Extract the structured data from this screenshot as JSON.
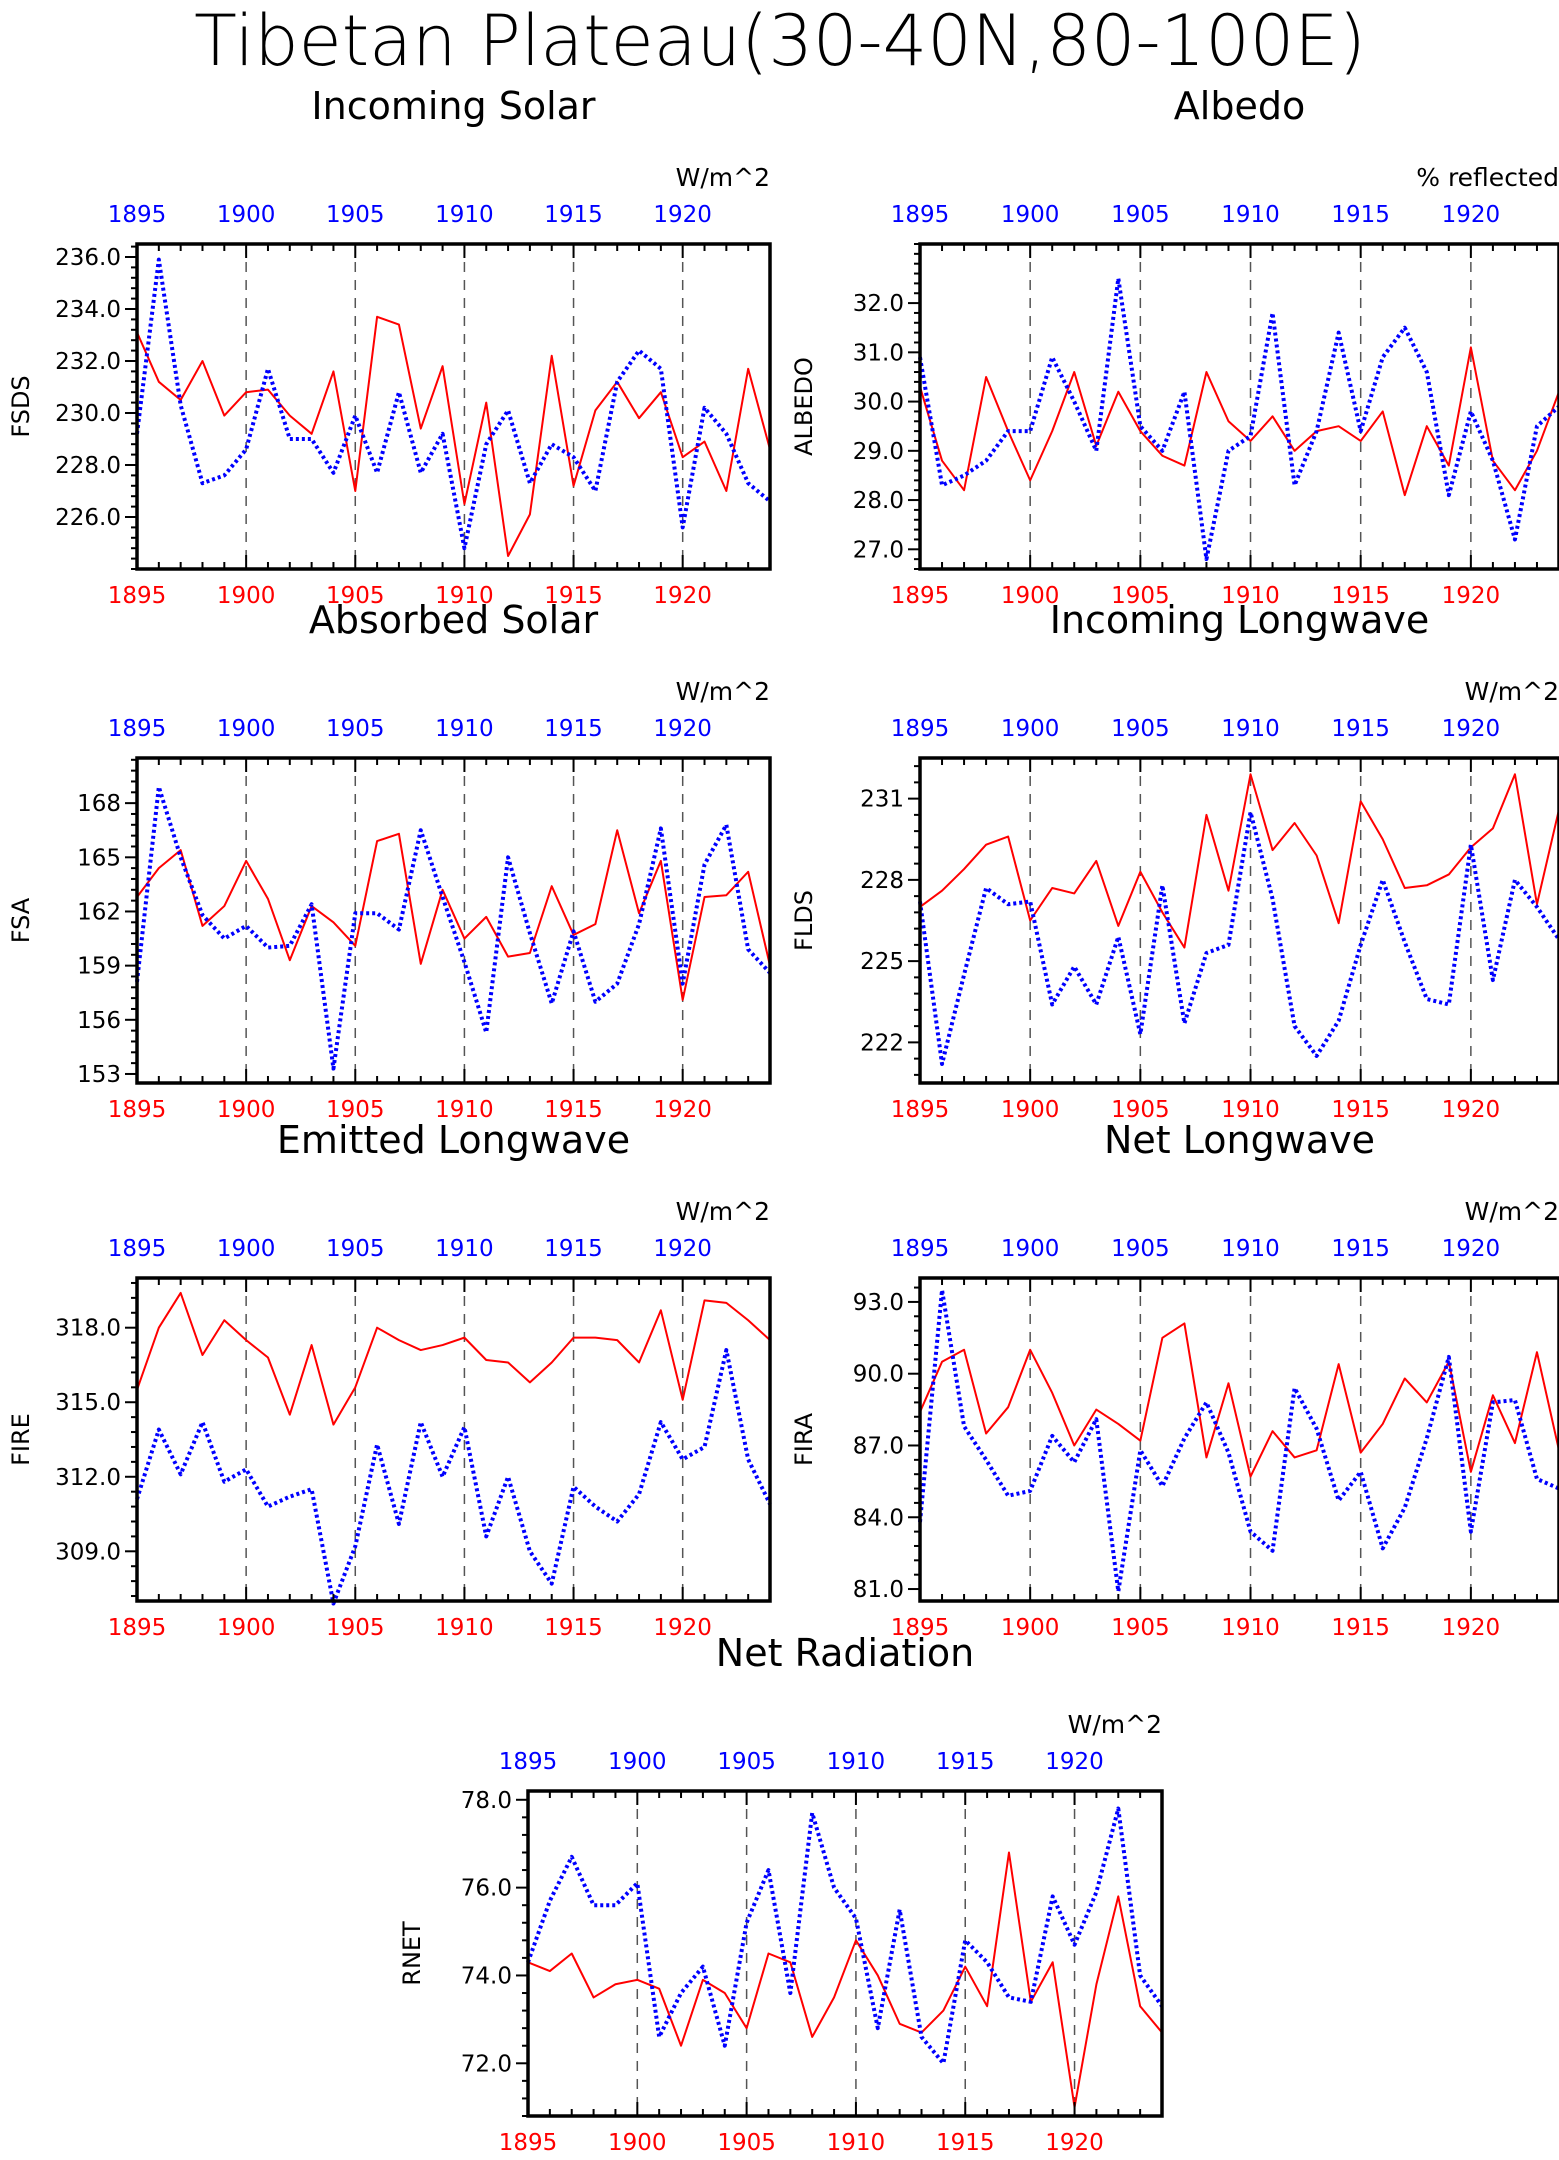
{
  "title": "Tibetan Plateau(30-40N,80-100E)",
  "colors": {
    "series_a": "#ff0000",
    "series_b": "#0000ff"
  },
  "chart_data": [
    {
      "type": "line",
      "title": "Incoming Solar",
      "ylabel": "FSDS",
      "units": "W/m^2",
      "xlim": [
        1895,
        1924
      ],
      "ylim": [
        224.0,
        236.5
      ],
      "yticks": [
        "236.0",
        "234.0",
        "232.0",
        "230.0",
        "228.0",
        "226.0"
      ],
      "xticks": [
        "1895",
        "1900",
        "1905",
        "1910",
        "1915",
        "1920"
      ],
      "series": [
        {
          "color": "red",
          "style": "solid",
          "x_axis": "bottom",
          "values": [
            233.1,
            231.2,
            230.5,
            232.0,
            229.9,
            230.8,
            230.9,
            229.9,
            229.2,
            231.6,
            227.0,
            233.7,
            233.4,
            229.4,
            231.8,
            226.5,
            230.4,
            224.5,
            226.1,
            232.2,
            227.2,
            230.1,
            231.2,
            229.8,
            230.8,
            228.3,
            228.9,
            227.0,
            231.7,
            228.6
          ]
        },
        {
          "color": "blue",
          "style": "dotted",
          "x_axis": "top",
          "values": [
            229.2,
            235.9,
            230.3,
            227.3,
            227.6,
            228.6,
            231.7,
            229.0,
            229.0,
            227.7,
            229.9,
            227.7,
            230.8,
            227.7,
            229.2,
            224.8,
            228.8,
            230.1,
            227.3,
            228.8,
            228.3,
            227.0,
            231.2,
            232.4,
            231.7,
            225.6,
            230.2,
            229.2,
            227.3,
            226.6
          ]
        }
      ]
    },
    {
      "type": "line",
      "title": "Albedo",
      "ylabel": "ALBEDO",
      "units": "% reflected",
      "xlim": [
        1895,
        1924
      ],
      "ylim": [
        26.6,
        33.2
      ],
      "yticks": [
        "32.0",
        "31.0",
        "30.0",
        "29.0",
        "28.0",
        "27.0"
      ],
      "xticks": [
        "1895",
        "1900",
        "1905",
        "1910",
        "1915",
        "1920"
      ],
      "series": [
        {
          "color": "red",
          "style": "solid",
          "x_axis": "bottom",
          "values": [
            30.3,
            28.8,
            28.2,
            30.5,
            29.4,
            28.4,
            29.4,
            30.6,
            29.1,
            30.2,
            29.4,
            28.9,
            28.7,
            30.6,
            29.6,
            29.2,
            29.7,
            29.0,
            29.4,
            29.5,
            29.2,
            29.8,
            28.1,
            29.5,
            28.7,
            31.1,
            28.8,
            28.2,
            29.0,
            30.2
          ]
        },
        {
          "color": "blue",
          "style": "dotted",
          "x_axis": "top",
          "values": [
            30.9,
            28.3,
            28.5,
            28.8,
            29.4,
            29.4,
            30.9,
            30.0,
            29.0,
            32.5,
            29.5,
            29.0,
            30.2,
            26.8,
            29.0,
            29.3,
            31.8,
            28.3,
            29.4,
            31.4,
            29.4,
            30.9,
            31.5,
            30.6,
            28.1,
            29.8,
            28.8,
            27.2,
            29.5,
            29.9
          ]
        }
      ]
    },
    {
      "type": "line",
      "title": "Absorbed Solar",
      "ylabel": "FSA",
      "units": "W/m^2",
      "xlim": [
        1895,
        1924
      ],
      "ylim": [
        152.5,
        170.5
      ],
      "yticks": [
        "168",
        "165",
        "162",
        "159",
        "156",
        "153"
      ],
      "xticks": [
        "1895",
        "1900",
        "1905",
        "1910",
        "1915",
        "1920"
      ],
      "series": [
        {
          "color": "red",
          "style": "solid",
          "x_axis": "bottom",
          "values": [
            162.8,
            164.4,
            165.4,
            161.2,
            162.3,
            164.8,
            162.7,
            159.3,
            162.3,
            161.4,
            160.1,
            165.9,
            166.3,
            159.1,
            163.2,
            160.5,
            161.7,
            159.5,
            159.7,
            163.4,
            160.7,
            161.3,
            166.5,
            161.9,
            164.8,
            157.1,
            162.8,
            162.9,
            164.2,
            159.0
          ]
        },
        {
          "color": "blue",
          "style": "dotted",
          "x_axis": "top",
          "values": [
            158.1,
            168.9,
            165.0,
            161.8,
            160.5,
            161.2,
            160.0,
            160.1,
            162.4,
            153.3,
            161.9,
            161.9,
            161.0,
            166.5,
            162.8,
            159.2,
            155.3,
            165.0,
            160.8,
            156.9,
            160.9,
            157.0,
            158.0,
            161.3,
            166.6,
            158.0,
            164.6,
            166.8,
            159.9,
            158.6
          ]
        }
      ]
    },
    {
      "type": "line",
      "title": "Incoming Longwave",
      "ylabel": "FLDS",
      "units": "W/m^2",
      "xlim": [
        1895,
        1924
      ],
      "ylim": [
        220.5,
        232.5
      ],
      "yticks": [
        "231",
        "228",
        "225",
        "222"
      ],
      "xticks": [
        "1895",
        "1900",
        "1905",
        "1910",
        "1915",
        "1920"
      ],
      "series": [
        {
          "color": "red",
          "style": "solid",
          "x_axis": "bottom",
          "values": [
            227.0,
            227.6,
            228.4,
            229.3,
            229.6,
            226.5,
            227.7,
            227.5,
            228.7,
            226.3,
            228.3,
            226.8,
            225.5,
            230.4,
            227.6,
            231.9,
            229.1,
            230.1,
            228.9,
            226.4,
            230.9,
            229.5,
            227.7,
            227.8,
            228.2,
            229.2,
            229.9,
            231.9,
            227.1,
            230.6
          ]
        },
        {
          "color": "blue",
          "style": "dotted",
          "x_axis": "top",
          "values": [
            227.2,
            221.2,
            224.5,
            227.7,
            227.1,
            227.2,
            223.4,
            224.8,
            223.4,
            225.9,
            222.3,
            227.8,
            222.7,
            225.3,
            225.6,
            230.5,
            227.3,
            222.6,
            221.5,
            222.8,
            225.6,
            228.0,
            225.7,
            223.6,
            223.4,
            229.3,
            224.3,
            228.0,
            227.0,
            225.8
          ]
        }
      ]
    },
    {
      "type": "line",
      "title": "Emitted Longwave",
      "ylabel": "FIRE",
      "units": "W/m^2",
      "xlim": [
        1895,
        1924
      ],
      "ylim": [
        307.0,
        320.0
      ],
      "yticks": [
        "318.0",
        "315.0",
        "312.0",
        "309.0"
      ],
      "xticks": [
        "1895",
        "1900",
        "1905",
        "1910",
        "1915",
        "1920"
      ],
      "series": [
        {
          "color": "red",
          "style": "solid",
          "x_axis": "bottom",
          "values": [
            315.5,
            318.0,
            319.4,
            316.9,
            318.3,
            317.5,
            316.8,
            314.5,
            317.3,
            314.1,
            315.6,
            318.0,
            317.5,
            317.1,
            317.3,
            317.6,
            316.7,
            316.6,
            315.8,
            316.6,
            317.6,
            317.6,
            317.5,
            316.6,
            318.7,
            315.1,
            319.1,
            319.0,
            318.3,
            317.5
          ]
        },
        {
          "color": "blue",
          "style": "dotted",
          "x_axis": "top",
          "values": [
            311.1,
            313.9,
            312.1,
            314.2,
            311.8,
            312.3,
            310.8,
            311.2,
            311.5,
            306.9,
            309.2,
            313.3,
            310.1,
            314.2,
            312.0,
            314.0,
            309.6,
            312.0,
            309.0,
            307.7,
            311.6,
            310.8,
            310.2,
            311.3,
            314.2,
            312.7,
            313.2,
            317.1,
            312.7,
            310.9
          ]
        }
      ]
    },
    {
      "type": "line",
      "title": "Net Longwave",
      "ylabel": "FIRA",
      "units": "W/m^2",
      "xlim": [
        1895,
        1924
      ],
      "ylim": [
        80.5,
        94.0
      ],
      "yticks": [
        "93.0",
        "90.0",
        "87.0",
        "84.0",
        "81.0"
      ],
      "xticks": [
        "1895",
        "1900",
        "1905",
        "1910",
        "1915",
        "1920"
      ],
      "series": [
        {
          "color": "red",
          "style": "solid",
          "x_axis": "bottom",
          "values": [
            88.4,
            90.5,
            91.0,
            87.5,
            88.6,
            91.0,
            89.2,
            87.0,
            88.5,
            87.9,
            87.2,
            91.5,
            92.1,
            86.5,
            89.6,
            85.7,
            87.6,
            86.5,
            86.8,
            90.4,
            86.7,
            87.9,
            89.8,
            88.8,
            90.5,
            85.9,
            89.1,
            87.1,
            90.9,
            86.8
          ]
        },
        {
          "color": "blue",
          "style": "dotted",
          "x_axis": "top",
          "values": [
            83.8,
            93.5,
            87.8,
            86.4,
            84.9,
            85.1,
            87.4,
            86.3,
            88.1,
            80.9,
            86.8,
            85.3,
            87.3,
            88.8,
            86.7,
            83.4,
            82.6,
            89.4,
            87.7,
            84.7,
            85.9,
            82.7,
            84.4,
            87.3,
            90.7,
            83.4,
            88.8,
            88.9,
            85.6,
            85.2
          ]
        }
      ]
    },
    {
      "type": "line",
      "title": "Net Radiation",
      "ylabel": "RNET",
      "units": "W/m^2",
      "xlim": [
        1895,
        1924
      ],
      "ylim": [
        70.8,
        78.2
      ],
      "yticks": [
        "78.0",
        "76.0",
        "74.0",
        "72.0"
      ],
      "xticks": [
        "1895",
        "1900",
        "1905",
        "1910",
        "1915",
        "1920"
      ],
      "series": [
        {
          "color": "red",
          "style": "solid",
          "x_axis": "bottom",
          "values": [
            74.3,
            74.1,
            74.5,
            73.5,
            73.8,
            73.9,
            73.7,
            72.4,
            73.9,
            73.6,
            72.8,
            74.5,
            74.3,
            72.6,
            73.5,
            74.8,
            74.0,
            72.9,
            72.7,
            73.2,
            74.2,
            73.3,
            76.8,
            73.4,
            74.3,
            71.0,
            73.8,
            75.8,
            73.3,
            72.7
          ]
        },
        {
          "color": "blue",
          "style": "dotted",
          "x_axis": "top",
          "values": [
            74.3,
            75.7,
            76.7,
            75.6,
            75.6,
            76.1,
            72.6,
            73.6,
            74.2,
            72.4,
            75.2,
            76.4,
            73.6,
            77.7,
            76.0,
            75.3,
            72.8,
            75.5,
            72.6,
            72.0,
            74.8,
            74.3,
            73.5,
            73.4,
            75.8,
            74.7,
            75.9,
            77.8,
            74.0,
            73.3
          ]
        }
      ]
    }
  ]
}
